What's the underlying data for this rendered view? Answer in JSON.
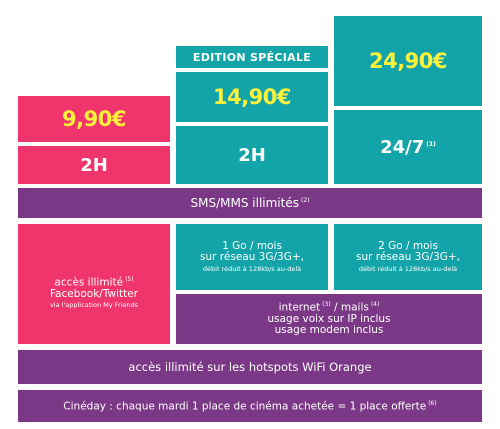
{
  "plan_low": {
    "price": "9,90",
    "currency": "€",
    "duration": "2H"
  },
  "plan_mid": {
    "badge": "EDITION SPÉCIALE",
    "price": "14,90",
    "currency": "€",
    "duration": "2H"
  },
  "plan_high": {
    "price": "24,90",
    "currency": "€",
    "duration": "24/7",
    "duration_note": "(1)"
  },
  "sms": {
    "text": "SMS/MMS illimités",
    "note": "(2)"
  },
  "social": {
    "line1": "accès illimité",
    "note": "(5)",
    "line2": "Facebook/Twitter",
    "sub": "via l'application My Friends"
  },
  "data_mid": {
    "line1": "1 Go / mois",
    "line2": "sur réseau 3G/3G+,",
    "sub": "débit réduit à 128kb/s au-delà"
  },
  "data_high": {
    "line1": "2 Go / mois",
    "line2": "sur réseau 3G/3G+,",
    "sub": "débit réduit à 128kb/s au-delà"
  },
  "internet": {
    "part1": "internet",
    "note1": "(3)",
    "part2": "/ mails",
    "note2": "(4)",
    "line2": "usage voix sur IP inclus",
    "line3": "usage modem inclus"
  },
  "wifi": {
    "text": "accès illimité sur les hotspots WiFi Orange"
  },
  "cineday": {
    "text": "Cinéday : chaque mardi 1 place de cinéma achetée = 1 place offerte",
    "note": "(6)"
  },
  "colors": {
    "pink": "#f0356c",
    "teal": "#12a4a9",
    "purple": "#7b3886",
    "price_yellow": "#fff13a"
  }
}
